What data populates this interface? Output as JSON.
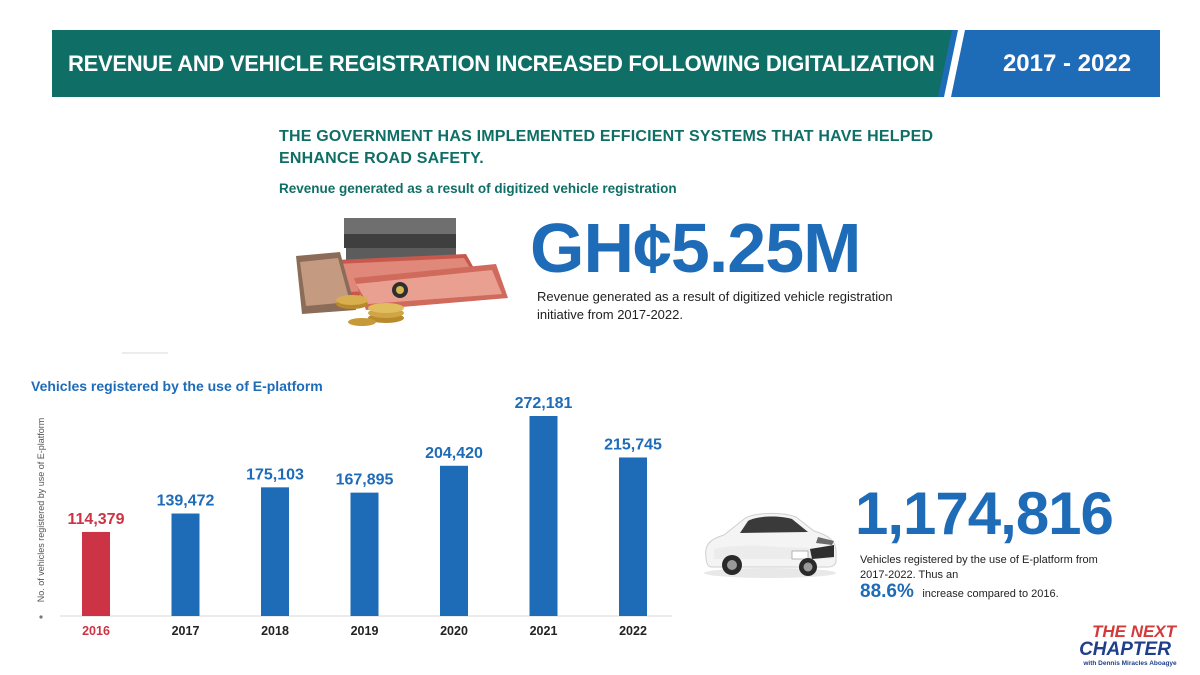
{
  "header": {
    "title": "REVENUE AND VEHICLE REGISTRATION INCREASED FOLLOWING DIGITALIZATION",
    "years": "2017 - 2022"
  },
  "headline": "THE GOVERNMENT HAS IMPLEMENTED EFFICIENT SYSTEMS THAT HAVE HELPED ENHANCE ROAD SAFETY.",
  "revenue": {
    "subtitle": "Revenue generated as a result of digitized vehicle registration",
    "amount": "GH¢5.25M",
    "note": "Revenue generated as a result of digitized vehicle registration initiative from 2017-2022."
  },
  "totals": {
    "vehicles": "1,174,816",
    "note": "Vehicles registered by the use of E-platform from 2017-2022. Thus an",
    "increase_value": "88.6%",
    "increase_text": "increase compared to 2016."
  },
  "logo": {
    "line1": "THE NEXT",
    "line2": "CHAPTER",
    "line3": "with Dennis Miracles Aboagye"
  },
  "colors": {
    "teal": "#0f6f66",
    "blue": "#1e6bb8",
    "red": "#cc3344"
  },
  "chart_data": {
    "type": "bar",
    "title": "Vehicles registered by the use of E-platform",
    "ylabel": "No. of vehicles registered by use of E-platform",
    "categories": [
      "2016",
      "2017",
      "2018",
      "2019",
      "2020",
      "2021",
      "2022"
    ],
    "values": [
      114379,
      139472,
      175103,
      167895,
      204420,
      272181,
      215745
    ],
    "value_labels": [
      "114,379",
      "139,472",
      "175,103",
      "167,895",
      "204,420",
      "272,181",
      "215,745"
    ],
    "highlight_category": "2016",
    "ylim": [
      0,
      272181
    ],
    "grid": false
  }
}
